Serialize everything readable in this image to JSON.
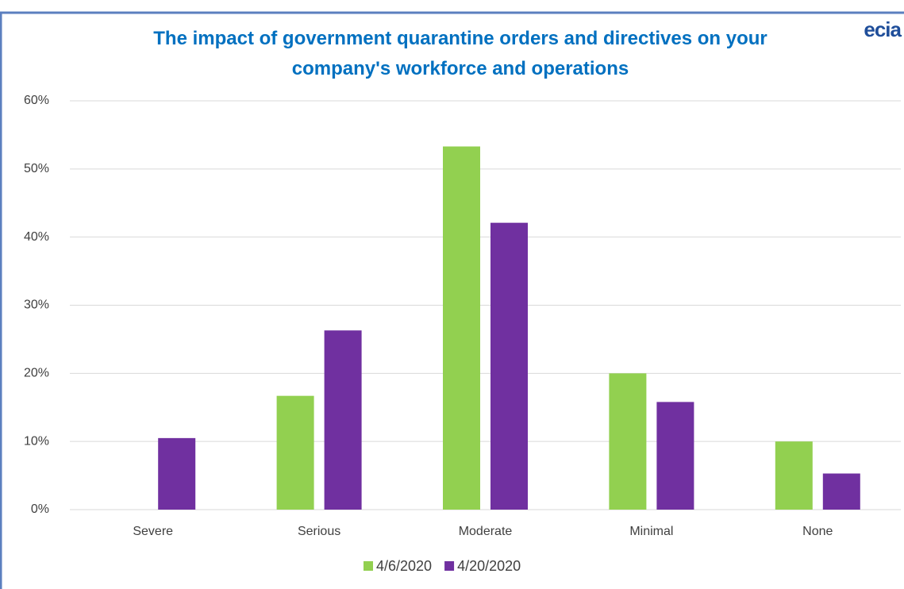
{
  "chart_data": {
    "type": "bar",
    "title": "The impact of government quarantine orders and directives on your company's workforce and operations",
    "logo": "ecia",
    "categories": [
      "Severe",
      "Serious",
      "Moderate",
      "Minimal",
      "None"
    ],
    "series": [
      {
        "name": "4/6/2020",
        "color": "#92d050",
        "values": [
          0,
          16.7,
          53.3,
          20.0,
          10.0
        ]
      },
      {
        "name": "4/20/2020",
        "color": "#7030a0",
        "values": [
          10.5,
          26.3,
          42.1,
          15.8,
          5.3
        ]
      }
    ],
    "ylim": [
      0,
      60
    ],
    "yticks": [
      {
        "value": 0,
        "label": "0%"
      },
      {
        "value": 10,
        "label": "10%"
      },
      {
        "value": 20,
        "label": "20%"
      },
      {
        "value": 30,
        "label": "30%"
      },
      {
        "value": 40,
        "label": "40%"
      },
      {
        "value": 50,
        "label": "50%"
      },
      {
        "value": 60,
        "label": "60%"
      }
    ],
    "grid": true,
    "legend": "bottom"
  }
}
